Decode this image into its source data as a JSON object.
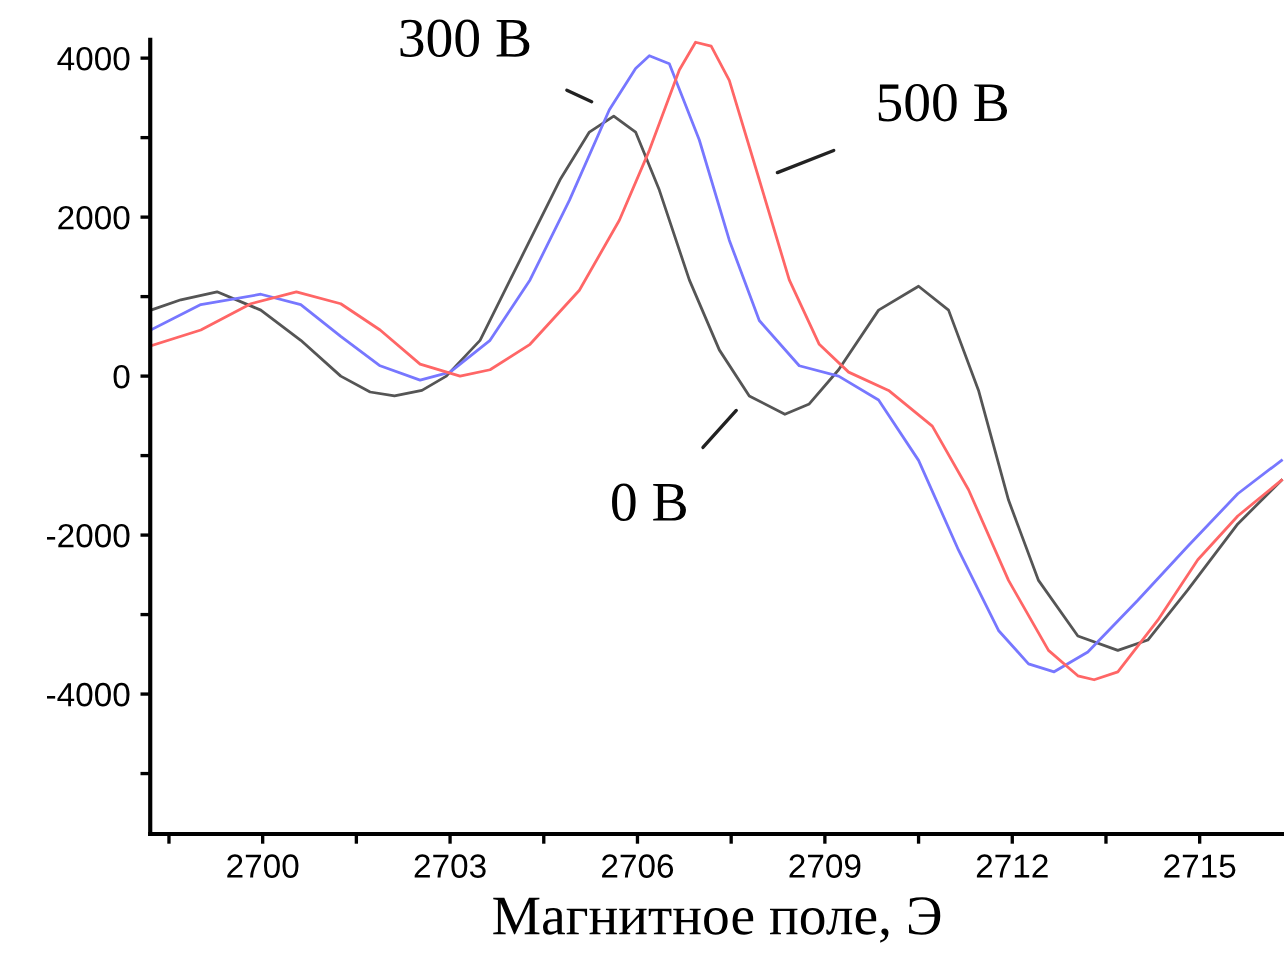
{
  "chart_data": {
    "type": "line",
    "xlabel": "Магнитное поле, Э",
    "xlim": [
      2698.2,
      2716.35
    ],
    "ylim": [
      -5760,
      4230
    ],
    "xticks": [
      {
        "value": 2698.5,
        "label": null
      },
      2700,
      {
        "value": 2701.5,
        "label": null
      },
      2703,
      {
        "value": 2704.5,
        "label": null
      },
      2706,
      {
        "value": 2707.5,
        "label": null
      },
      2709,
      {
        "value": 2710.5,
        "label": null
      },
      2712,
      {
        "value": 2713.5,
        "label": null
      },
      2715
    ],
    "yticks": [
      {
        "value": -5000,
        "label": null
      },
      -4000,
      {
        "value": -3000,
        "label": null
      },
      -2000,
      {
        "value": -1000,
        "label": null
      },
      0,
      {
        "value": 1000,
        "label": null
      },
      2000,
      {
        "value": 3000,
        "label": null
      },
      4000
    ],
    "grid": false,
    "legend": false,
    "marker": "none",
    "line_style": "solid",
    "series": [
      {
        "color": "#555555",
        "x": [
          2698.21,
          2698.69,
          2699.27,
          2699.97,
          2700.61,
          2701.25,
          2701.72,
          2702.11,
          2702.55,
          2702.94,
          2703.48,
          2704.12,
          2704.76,
          2705.23,
          2705.62,
          2705.97,
          2706.35,
          2706.83,
          2707.31,
          2707.79,
          2708.36,
          2708.75,
          2709.22,
          2709.86,
          2710.5,
          2710.98,
          2711.46,
          2711.94,
          2712.42,
          2713.05,
          2713.69,
          2714.17,
          2714.81,
          2715.61,
          2716.31
        ],
        "values": [
          830,
          960,
          1060,
          830,
          450,
          0,
          -200,
          -250,
          -180,
          0,
          450,
          1460,
          2470,
          3070,
          3270,
          3070,
          2340,
          1210,
          330,
          -250,
          -480,
          -350,
          80,
          830,
          1130,
          830,
          -180,
          -1560,
          -2570,
          -3270,
          -3450,
          -3320,
          -2690,
          -1860,
          -1310
        ]
      },
      {
        "color": "#7777ff",
        "x": [
          2698.21,
          2699.01,
          2699.97,
          2700.61,
          2701.25,
          2701.88,
          2702.52,
          2703.0,
          2703.64,
          2704.28,
          2704.91,
          2705.55,
          2705.97,
          2706.19,
          2706.51,
          2706.99,
          2707.47,
          2707.95,
          2708.59,
          2709.22,
          2709.86,
          2710.5,
          2711.14,
          2711.78,
          2712.26,
          2712.67,
          2713.21,
          2714.01,
          2714.81,
          2715.61,
          2716.31
        ],
        "values": [
          580,
          900,
          1030,
          900,
          500,
          130,
          -50,
          50,
          450,
          1210,
          2210,
          3350,
          3870,
          4030,
          3930,
          2970,
          1710,
          700,
          130,
          0,
          -300,
          -1060,
          -2190,
          -3200,
          -3620,
          -3720,
          -3470,
          -2820,
          -2140,
          -1480,
          -1060
        ]
      },
      {
        "color": "#ff6666",
        "x": [
          2698.21,
          2699.01,
          2699.81,
          2700.54,
          2701.25,
          2701.88,
          2702.52,
          2703.16,
          2703.64,
          2704.28,
          2705.07,
          2705.71,
          2706.19,
          2706.67,
          2706.93,
          2707.18,
          2707.47,
          2707.95,
          2708.43,
          2708.91,
          2709.38,
          2710.02,
          2710.72,
          2711.3,
          2711.94,
          2712.58,
          2713.05,
          2713.31,
          2713.69,
          2714.33,
          2714.97,
          2715.61,
          2716.31
        ],
        "values": [
          380,
          580,
          910,
          1060,
          910,
          580,
          150,
          0,
          80,
          400,
          1080,
          1960,
          2840,
          3850,
          4200,
          4150,
          3720,
          2470,
          1210,
          400,
          50,
          -180,
          -630,
          -1430,
          -2570,
          -3450,
          -3770,
          -3820,
          -3720,
          -3070,
          -2310,
          -1760,
          -1310
        ]
      }
    ],
    "annotations": [
      {
        "text": "300 В",
        "x": 2705.55,
        "y": 3350
      },
      {
        "text": "500 В",
        "x": 2707.95,
        "y": 2470
      },
      {
        "text": "0 В",
        "x": 2707.79,
        "y": -250
      }
    ]
  }
}
